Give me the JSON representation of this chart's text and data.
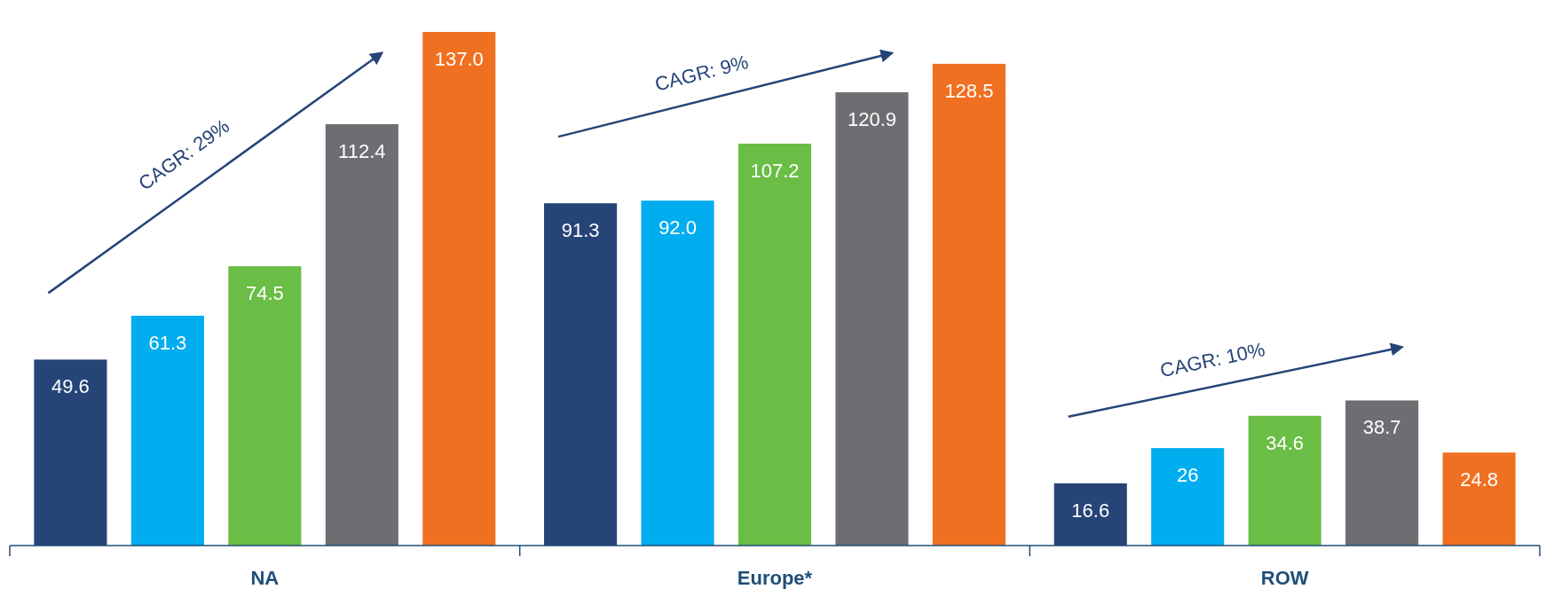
{
  "chart_data": {
    "type": "bar",
    "categories": [
      "NA",
      "Europe*",
      "ROW"
    ],
    "series": [
      {
        "color": "#264478",
        "values": [
          49.6,
          91.3,
          16.6
        ],
        "value_labels": [
          "49.6",
          "91.3",
          "16.6"
        ]
      },
      {
        "color": "#00adef",
        "values": [
          61.3,
          92.0,
          26
        ],
        "value_labels": [
          "61.3",
          "92.0",
          "26"
        ]
      },
      {
        "color": "#6abd45",
        "values": [
          74.5,
          107.2,
          34.6
        ],
        "value_labels": [
          "74.5",
          "107.2",
          "34.6"
        ]
      },
      {
        "color": "#6d6e71",
        "values": [
          112.4,
          120.9,
          38.7
        ],
        "value_labels": [
          "112.4",
          "120.9",
          "38.7"
        ]
      },
      {
        "color": "#f07022",
        "values": [
          137.0,
          128.5,
          24.8
        ],
        "value_labels": [
          "137.0",
          "128.5",
          "24.8"
        ]
      }
    ],
    "annotations": [
      "CAGR: 29%",
      "CAGR: 9%",
      "CAGR: 10%"
    ]
  }
}
